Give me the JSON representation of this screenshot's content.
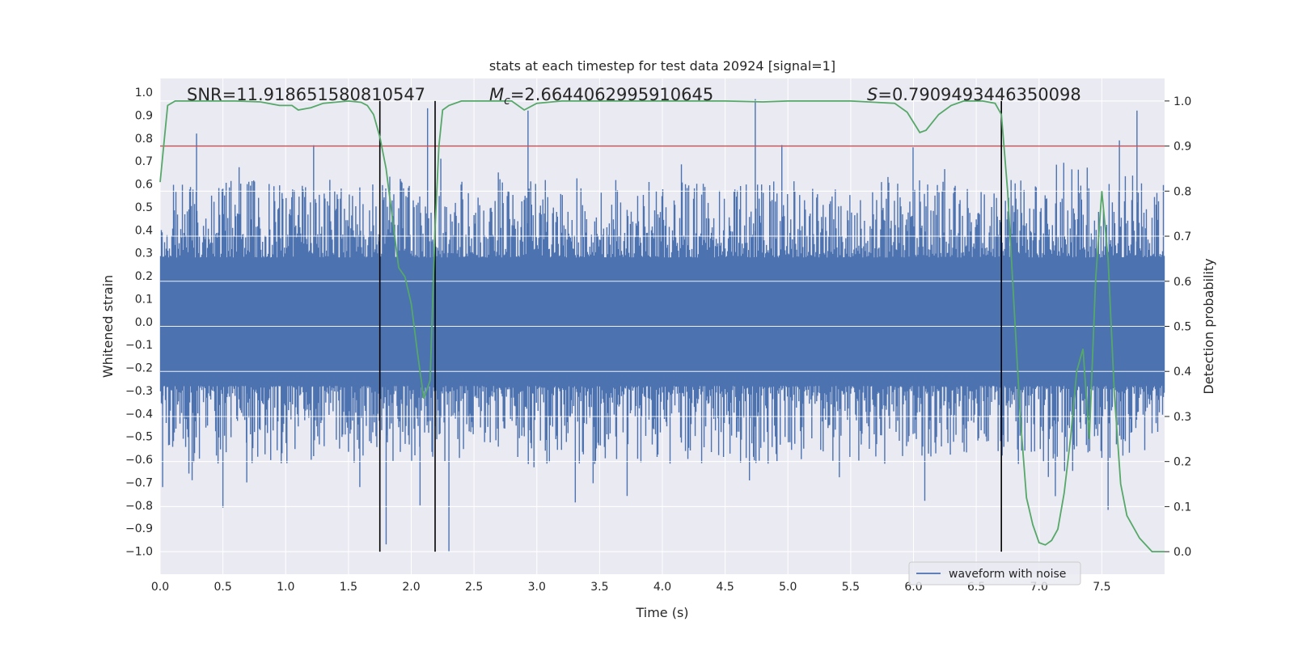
{
  "chart_data": {
    "type": "line",
    "title": "stats at each timestep for test data 20924 [signal=1]",
    "xlabel": "Time (s)",
    "ylabel": "Whitened strain",
    "y2label": "Detection probability",
    "xlim": [
      0.0,
      8.0
    ],
    "ylim": [
      -1.1,
      1.06
    ],
    "y2lim": [
      -0.05,
      1.05
    ],
    "xticks": [
      0.0,
      0.5,
      1.0,
      1.5,
      2.0,
      2.5,
      3.0,
      3.5,
      4.0,
      4.5,
      5.0,
      5.5,
      6.0,
      6.5,
      7.0,
      7.5
    ],
    "xtick_labels": [
      "0.0",
      "0.5",
      "1.0",
      "1.5",
      "2.0",
      "2.5",
      "3.0",
      "3.5",
      "4.0",
      "4.5",
      "5.0",
      "5.5",
      "6.0",
      "6.5",
      "7.0",
      "7.5"
    ],
    "yticks": [
      1.0,
      0.9,
      0.8,
      0.7,
      0.6,
      0.5,
      0.4,
      0.3,
      0.2,
      0.1,
      0.0,
      -0.1,
      -0.2,
      -0.3,
      -0.4,
      -0.5,
      -0.6,
      -0.7,
      -0.8,
      -0.9,
      -1.0
    ],
    "ytick_labels": [
      "1.0",
      "0.9",
      "0.8",
      "0.7",
      "0.6",
      "0.5",
      "0.4",
      "0.3",
      "0.2",
      "0.1",
      "0.0",
      "−0.1",
      "−0.2",
      "−0.3",
      "−0.4",
      "−0.5",
      "−0.6",
      "−0.7",
      "−0.8",
      "−0.9",
      "−1.0"
    ],
    "y2ticks": [
      1.0,
      0.9,
      0.8,
      0.7,
      0.6,
      0.5,
      0.4,
      0.3,
      0.2,
      0.1,
      0.0
    ],
    "y2tick_labels": [
      "1.0",
      "0.9",
      "0.8",
      "0.7",
      "0.6",
      "0.5",
      "0.4",
      "0.3",
      "0.2",
      "0.1",
      "0.0"
    ],
    "grid": true,
    "annotations": {
      "snr": "SNR=11.918651580810547",
      "mc_symbol": "M",
      "mc_sub": "c",
      "mc_value": "=2.6644062995910645",
      "s_symbol": "S",
      "s_value": "=0.7909493446350098"
    },
    "threshold": {
      "value": 0.9,
      "axis": "right",
      "color": "#c44e52"
    },
    "vertical_markers": [
      1.75,
      2.19,
      6.7
    ],
    "legend": {
      "label": "waveform with noise",
      "location": "lower-right"
    },
    "series": [
      {
        "name": "waveform with noise",
        "axis": "left",
        "color": "#4c72b0",
        "style": "dense noise, |strain| typically 0.3–0.6",
        "spikes": [
          {
            "x": 0.02,
            "y": -0.72
          },
          {
            "x": 0.29,
            "y": 0.82
          },
          {
            "x": 0.5,
            "y": -0.81
          },
          {
            "x": 0.69,
            "y": -0.7
          },
          {
            "x": 1.8,
            "y": -0.97
          },
          {
            "x": 1.75,
            "y": -0.8
          },
          {
            "x": 2.07,
            "y": -0.8
          },
          {
            "x": 2.13,
            "y": 0.93
          },
          {
            "x": 2.3,
            "y": -1.0
          },
          {
            "x": 2.93,
            "y": 0.92
          },
          {
            "x": 4.74,
            "y": 0.97
          },
          {
            "x": 6.09,
            "y": -0.78
          },
          {
            "x": 7.13,
            "y": -0.76
          },
          {
            "x": 7.55,
            "y": -0.82
          },
          {
            "x": 7.64,
            "y": 0.79
          },
          {
            "x": 7.78,
            "y": 0.92
          }
        ]
      },
      {
        "name": "Detection probability",
        "axis": "right",
        "color": "#55a868",
        "x": [
          0.0,
          0.06,
          0.12,
          0.2,
          0.4,
          0.6,
          0.8,
          0.95,
          1.05,
          1.1,
          1.2,
          1.3,
          1.5,
          1.6,
          1.65,
          1.7,
          1.75,
          1.8,
          1.85,
          1.9,
          1.95,
          2.0,
          2.05,
          2.1,
          2.15,
          2.19,
          2.22,
          2.25,
          2.3,
          2.4,
          2.6,
          2.8,
          2.9,
          3.0,
          3.2,
          3.5,
          4.0,
          4.5,
          4.8,
          5.0,
          5.5,
          5.85,
          5.95,
          6.05,
          6.1,
          6.2,
          6.3,
          6.4,
          6.55,
          6.65,
          6.7,
          6.75,
          6.8,
          6.85,
          6.9,
          6.95,
          7.0,
          7.05,
          7.1,
          7.15,
          7.2,
          7.25,
          7.3,
          7.35,
          7.4,
          7.45,
          7.5,
          7.55,
          7.6,
          7.65,
          7.7,
          7.8,
          7.9,
          8.0
        ],
        "y": [
          0.82,
          0.99,
          1.0,
          1.0,
          1.0,
          1.0,
          0.998,
          0.99,
          0.99,
          0.98,
          0.985,
          0.995,
          1.0,
          0.997,
          0.99,
          0.97,
          0.92,
          0.85,
          0.74,
          0.63,
          0.61,
          0.55,
          0.44,
          0.34,
          0.38,
          0.72,
          0.9,
          0.98,
          0.99,
          1.0,
          1.0,
          1.0,
          0.98,
          0.995,
          1.0,
          1.0,
          1.0,
          1.0,
          0.998,
          1.0,
          1.0,
          0.995,
          0.975,
          0.93,
          0.935,
          0.97,
          0.99,
          1.0,
          1.0,
          0.995,
          0.97,
          0.8,
          0.55,
          0.3,
          0.12,
          0.06,
          0.02,
          0.015,
          0.025,
          0.05,
          0.13,
          0.25,
          0.4,
          0.45,
          0.25,
          0.6,
          0.8,
          0.65,
          0.35,
          0.15,
          0.08,
          0.03,
          0.0,
          0.0
        ]
      }
    ]
  }
}
